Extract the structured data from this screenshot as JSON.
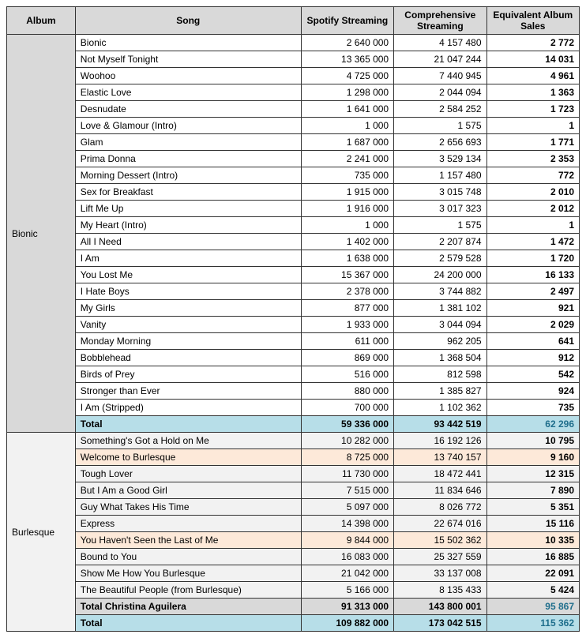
{
  "columns": [
    "Album",
    "Song",
    "Spotify Streaming",
    "Comprehensive Streaming",
    "Equivalent Album Sales"
  ],
  "groups": [
    {
      "album": "Bionic",
      "rows": [
        {
          "song": "Bionic",
          "spotify": "2 640 000",
          "comp": "4 157 480",
          "eas": "2 772",
          "cls": ""
        },
        {
          "song": "Not Myself Tonight",
          "spotify": "13 365 000",
          "comp": "21 047 244",
          "eas": "14 031",
          "cls": ""
        },
        {
          "song": "Woohoo",
          "spotify": "4 725 000",
          "comp": "7 440 945",
          "eas": "4 961",
          "cls": ""
        },
        {
          "song": "Elastic Love",
          "spotify": "1 298 000",
          "comp": "2 044 094",
          "eas": "1 363",
          "cls": ""
        },
        {
          "song": "Desnudate",
          "spotify": "1 641 000",
          "comp": "2 584 252",
          "eas": "1 723",
          "cls": ""
        },
        {
          "song": "Love & Glamour (Intro)",
          "spotify": "1 000",
          "comp": "1 575",
          "eas": "1",
          "cls": ""
        },
        {
          "song": "Glam",
          "spotify": "1 687 000",
          "comp": "2 656 693",
          "eas": "1 771",
          "cls": ""
        },
        {
          "song": "Prima Donna",
          "spotify": "2 241 000",
          "comp": "3 529 134",
          "eas": "2 353",
          "cls": ""
        },
        {
          "song": "Morning Dessert (Intro)",
          "spotify": "735 000",
          "comp": "1 157 480",
          "eas": "772",
          "cls": ""
        },
        {
          "song": "Sex for Breakfast",
          "spotify": "1 915 000",
          "comp": "3 015 748",
          "eas": "2 010",
          "cls": ""
        },
        {
          "song": "Lift Me Up",
          "spotify": "1 916 000",
          "comp": "3 017 323",
          "eas": "2 012",
          "cls": ""
        },
        {
          "song": "My Heart (Intro)",
          "spotify": "1 000",
          "comp": "1 575",
          "eas": "1",
          "cls": ""
        },
        {
          "song": "All I Need",
          "spotify": "1 402 000",
          "comp": "2 207 874",
          "eas": "1 472",
          "cls": ""
        },
        {
          "song": "I Am",
          "spotify": "1 638 000",
          "comp": "2 579 528",
          "eas": "1 720",
          "cls": ""
        },
        {
          "song": "You Lost Me",
          "spotify": "15 367 000",
          "comp": "24 200 000",
          "eas": "16 133",
          "cls": ""
        },
        {
          "song": "I Hate Boys",
          "spotify": "2 378 000",
          "comp": "3 744 882",
          "eas": "2 497",
          "cls": ""
        },
        {
          "song": "My Girls",
          "spotify": "877 000",
          "comp": "1 381 102",
          "eas": "921",
          "cls": ""
        },
        {
          "song": "Vanity",
          "spotify": "1 933 000",
          "comp": "3 044 094",
          "eas": "2 029",
          "cls": ""
        },
        {
          "song": "Monday Morning",
          "spotify": "611 000",
          "comp": "962 205",
          "eas": "641",
          "cls": ""
        },
        {
          "song": "Bobblehead",
          "spotify": "869 000",
          "comp": "1 368 504",
          "eas": "912",
          "cls": ""
        },
        {
          "song": "Birds of Prey",
          "spotify": "516 000",
          "comp": "812 598",
          "eas": "542",
          "cls": ""
        },
        {
          "song": "Stronger than Ever",
          "spotify": "880 000",
          "comp": "1 385 827",
          "eas": "924",
          "cls": ""
        },
        {
          "song": "I Am (Stripped)",
          "spotify": "700 000",
          "comp": "1 102 362",
          "eas": "735",
          "cls": ""
        },
        {
          "song": "Total",
          "spotify": "59 336 000",
          "comp": "93 442 519",
          "eas": "62 296",
          "cls": "total-row"
        }
      ]
    },
    {
      "album": "Burlesque",
      "rows": [
        {
          "song": "Something's Got a Hold on Me",
          "spotify": "10 282 000",
          "comp": "16 192 126",
          "eas": "10 795",
          "cls": "gray-row"
        },
        {
          "song": "Welcome to Burlesque",
          "spotify": "8 725 000",
          "comp": "13 740 157",
          "eas": "9 160",
          "cls": "highlight-row"
        },
        {
          "song": "Tough Lover",
          "spotify": "11 730 000",
          "comp": "18 472 441",
          "eas": "12 315",
          "cls": "gray-row"
        },
        {
          "song": "But I Am a Good Girl",
          "spotify": "7 515 000",
          "comp": "11 834 646",
          "eas": "7 890",
          "cls": "gray-row"
        },
        {
          "song": "Guy What Takes His Time",
          "spotify": "5 097 000",
          "comp": "8 026 772",
          "eas": "5 351",
          "cls": "gray-row"
        },
        {
          "song": "Express",
          "spotify": "14 398 000",
          "comp": "22 674 016",
          "eas": "15 116",
          "cls": "gray-row"
        },
        {
          "song": "You Haven't Seen the Last of Me",
          "spotify": "9 844 000",
          "comp": "15 502 362",
          "eas": "10 335",
          "cls": "highlight-row"
        },
        {
          "song": "Bound to You",
          "spotify": "16 083 000",
          "comp": "25 327 559",
          "eas": "16 885",
          "cls": "gray-row"
        },
        {
          "song": "Show Me How You Burlesque",
          "spotify": "21 042 000",
          "comp": "33 137 008",
          "eas": "22 091",
          "cls": "gray-row"
        },
        {
          "song": "The Beautiful People (from Burlesque)",
          "spotify": "5 166 000",
          "comp": "8 135 433",
          "eas": "5 424",
          "cls": "gray-row"
        },
        {
          "song": "Total Christina Aguilera",
          "spotify": "91 313 000",
          "comp": "143 800 001",
          "eas": "95 867",
          "cls": "subtotal-row"
        },
        {
          "song": "Total",
          "spotify": "109 882 000",
          "comp": "173 042 515",
          "eas": "115 362",
          "cls": "total-row"
        }
      ]
    }
  ]
}
